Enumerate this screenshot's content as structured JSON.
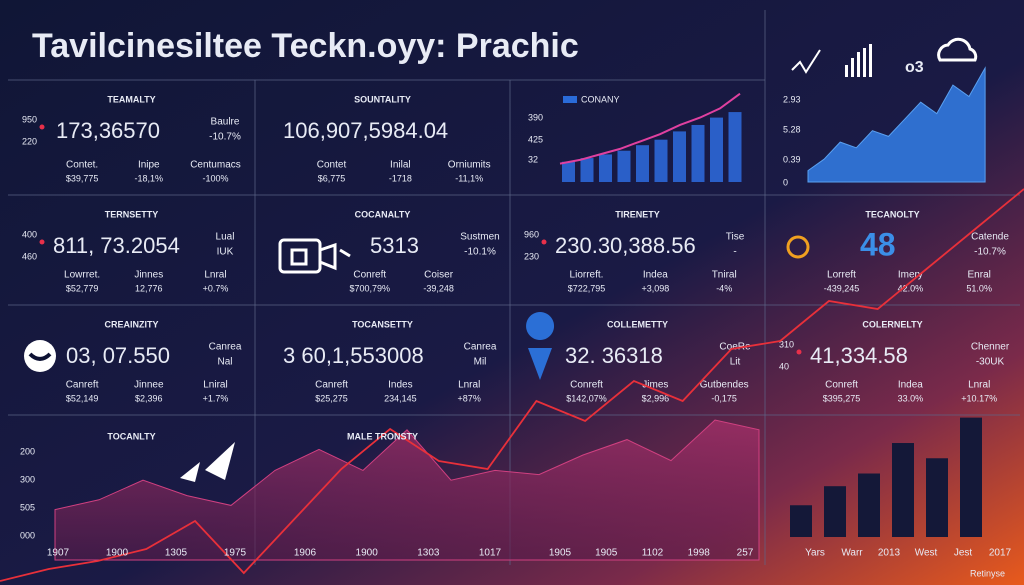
{
  "title": "Tavilcinesiltee Teckn.oyy: Prachic",
  "cells": [
    {
      "title": "TEAMALTY",
      "side": [
        "950",
        "220"
      ],
      "big": "173,36570",
      "right": [
        "Baulre",
        "-10.7%"
      ],
      "stats": [
        {
          "label": "Contet.",
          "value": "$39,775"
        },
        {
          "label": "Inipe",
          "value": "-18,1%"
        },
        {
          "label": "Centumacs",
          "value": "-100%"
        }
      ]
    },
    {
      "title": "SOUNTALITY",
      "big": "106,907,5984.04",
      "stats": [
        {
          "label": "Contet",
          "value": "$6,775"
        },
        {
          "label": "Inilal",
          "value": "-1718"
        },
        {
          "label": "Orniumits",
          "value": "-11,1%"
        }
      ]
    },
    {
      "title": "TERNSETTY",
      "side": [
        "400",
        "460"
      ],
      "big": "811, 73.2054",
      "right": [
        "Lual",
        "IUK"
      ],
      "stats": [
        {
          "label": "Lowrret.",
          "value": "$52,779"
        },
        {
          "label": "Jinnes",
          "value": "12,776"
        },
        {
          "label": "Lnral",
          "value": "+0.7%"
        }
      ]
    },
    {
      "title": "COCANALTY",
      "big": "5313",
      "right": [
        "Sustmen",
        "-10.1%"
      ],
      "stats": [
        {
          "label": "Conreft",
          "value": "$700,79%"
        },
        {
          "label": "Coiser",
          "value": "-39,248"
        }
      ]
    },
    {
      "title": "TIRENETY",
      "side": [
        "960",
        "230"
      ],
      "big": "230.30,388.56",
      "right": [
        "Tise",
        "-"
      ],
      "stats": [
        {
          "label": "Liorreft.",
          "value": "$722,795"
        },
        {
          "label": "Indea",
          "value": "+3,098"
        },
        {
          "label": "Tniral",
          "value": "-4%"
        }
      ]
    },
    {
      "title": "TECANOLTY",
      "big": "48",
      "right": [
        "Catende",
        "-10.7%"
      ],
      "stats": [
        {
          "label": "Lorreft",
          "value": "-439,245"
        },
        {
          "label": "Imery",
          "value": "42.0%"
        },
        {
          "label": "Enral",
          "value": "51.0%"
        }
      ]
    },
    {
      "title": "CREAINZITY",
      "big": "03, 07.550",
      "right": [
        "Canrea",
        "Nal"
      ],
      "stats": [
        {
          "label": "Canreft",
          "value": "$52,149"
        },
        {
          "label": "Jinnee",
          "value": "$2,396"
        },
        {
          "label": "Lniral",
          "value": "+1.7%"
        }
      ]
    },
    {
      "title": "TOCANSETTY",
      "big": "3 60,1,553008",
      "right": [
        "Canrea",
        "Mil"
      ],
      "stats": [
        {
          "label": "Canreft",
          "value": "$25,275"
        },
        {
          "label": "Indes",
          "value": "234,145"
        },
        {
          "label": "Lnral",
          "value": "+87%"
        }
      ]
    },
    {
      "title": "COLLEMETTY",
      "big": "32. 36318",
      "right": [
        "CoeRe",
        "Lit"
      ],
      "stats": [
        {
          "label": "Conreft",
          "value": "$142,07%"
        },
        {
          "label": "Jimes",
          "value": "$2,996"
        },
        {
          "label": "Gutbendes",
          "value": "-0,175"
        }
      ]
    },
    {
      "title": "COLERNELTY",
      "side": [
        "310",
        "40"
      ],
      "big": "41,334.58",
      "right": [
        "Chenner",
        "-30UK"
      ],
      "stats": [
        {
          "label": "Conreft",
          "value": "$395,275"
        },
        {
          "label": "Indea",
          "value": "33.0%"
        },
        {
          "label": "Lnral",
          "value": "+10.17%"
        }
      ]
    }
  ],
  "top_bar_chart": {
    "legend": "CONANY",
    "axis_labels": [
      "390",
      "425",
      "32"
    ],
    "ylim": [
      0,
      100
    ],
    "values": [
      22,
      26,
      30,
      34,
      40,
      46,
      55,
      62,
      70,
      76
    ],
    "line": [
      20,
      24,
      30,
      36,
      44,
      52,
      62,
      70,
      80,
      96
    ]
  },
  "top_area_chart": {
    "icon_text": "o3",
    "axis_labels": [
      "2.93",
      "5.28",
      "0.39",
      "0"
    ],
    "ylim": [
      0,
      100
    ],
    "values": [
      10,
      20,
      35,
      30,
      45,
      40,
      55,
      70,
      60,
      85,
      75,
      100
    ]
  },
  "bottom": {
    "panels": [
      {
        "title": "TOCANLTY",
        "axis_labels": [
          "200",
          "300",
          "505",
          "000"
        ],
        "x_labels": [
          "1907",
          "1900",
          "1305",
          "1975"
        ]
      },
      {
        "title": "MALE TRONSTY",
        "x_labels": [
          "1906",
          "1900",
          "1303",
          "1017"
        ]
      },
      {
        "x_labels": [
          "1905",
          "1905",
          "1102",
          "1998",
          "257"
        ]
      },
      {
        "x_labels": [
          "Yars",
          "Warr",
          "2013",
          "West",
          "Jest",
          "2017"
        ]
      }
    ],
    "area": {
      "ylim": [
        0,
        100
      ],
      "values": [
        36,
        43,
        57,
        46,
        39,
        64,
        79,
        64,
        93,
        57,
        64,
        61,
        75,
        86,
        71,
        100,
        93
      ]
    },
    "trend": {
      "ylim": [
        0,
        100
      ],
      "values": [
        1,
        4,
        6,
        9,
        16,
        3,
        16,
        29,
        39,
        31,
        29,
        46,
        41,
        51,
        46,
        59,
        61,
        71,
        69,
        79,
        89,
        99
      ]
    },
    "bars": {
      "ylim": [
        0,
        100
      ],
      "values": [
        25,
        40,
        50,
        74,
        62,
        94
      ]
    }
  },
  "footer": "Retinyse"
}
